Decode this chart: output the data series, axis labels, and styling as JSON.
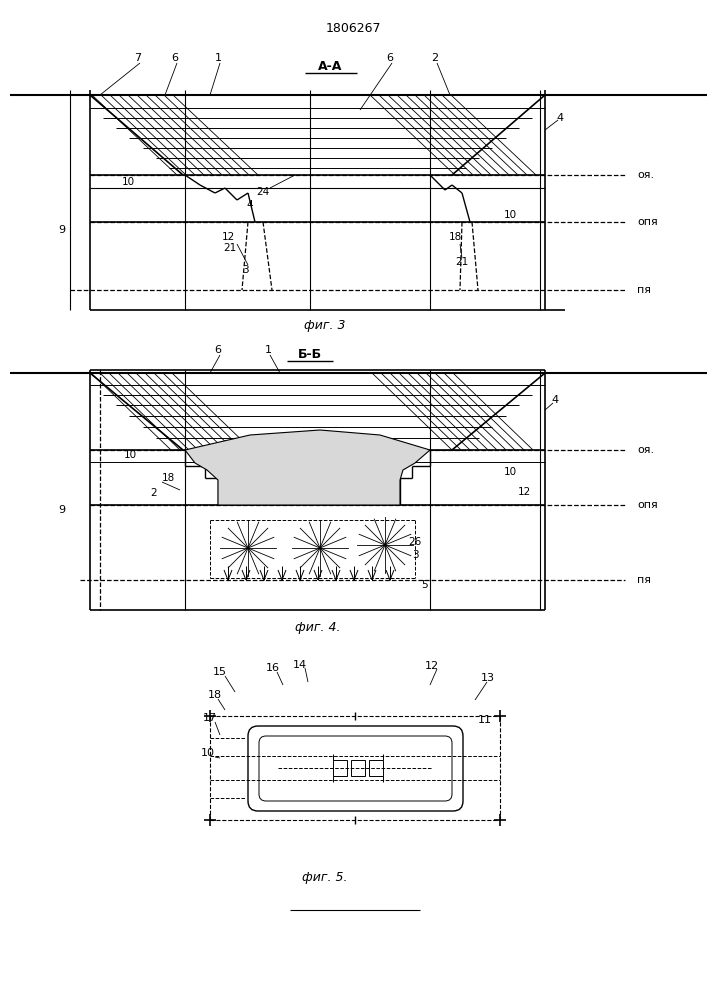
{
  "title": "1806267",
  "fig3_label": "фиг. 3",
  "fig4_label": "фиг. 4.",
  "fig5_label": "фиг. 5.",
  "section_aa": "А-А",
  "section_bb": "Б-Б",
  "level_oya": "оя.",
  "level_opya": "опя",
  "level_pya": "пя",
  "bg_color": "#ffffff",
  "line_color": "#000000"
}
